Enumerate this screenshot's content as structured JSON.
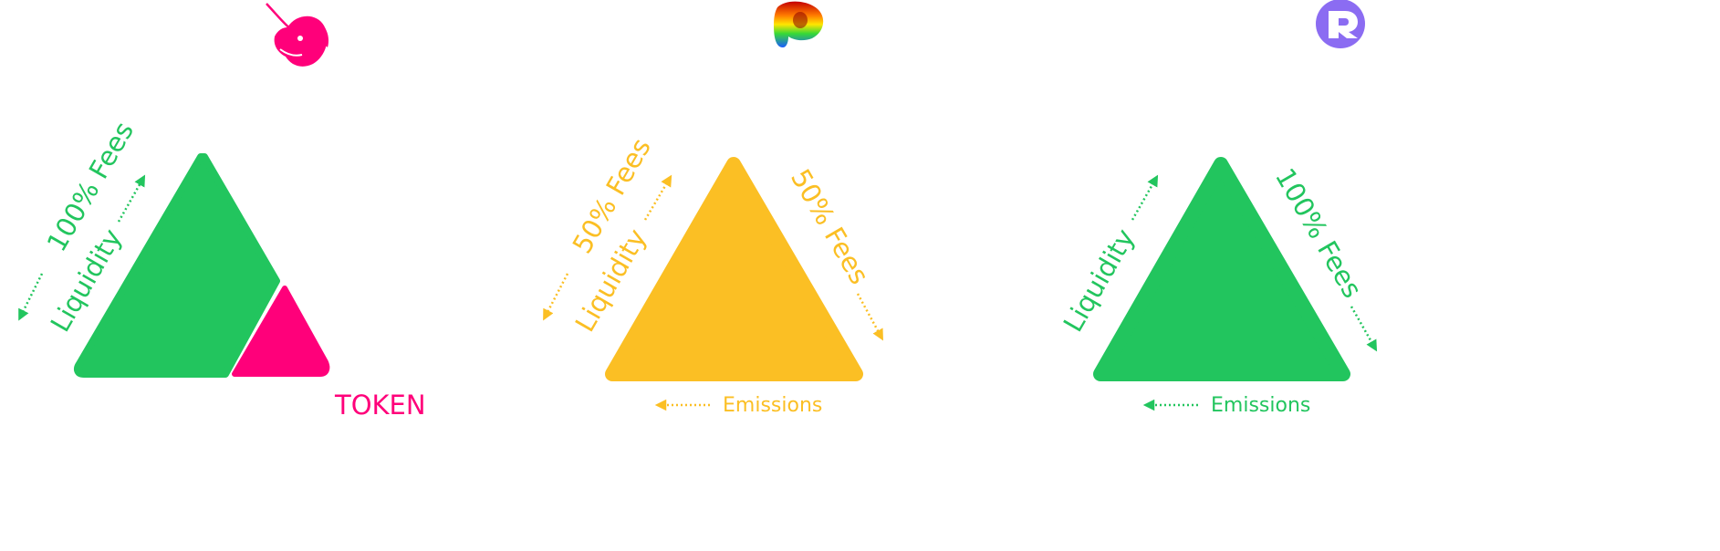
{
  "colors": {
    "green": "#22c55e",
    "pink": "#ff007a",
    "yellow": "#fbbf24",
    "purple": "#8b6cf2"
  },
  "panels": [
    {
      "logo": "uniswap-unicorn-logo",
      "labels": {
        "fees": "100% Fees",
        "liquidity": "Liquidity",
        "token": "TOKEN"
      }
    },
    {
      "logo": "curve-logo",
      "labels": {
        "fees_left": "50% Fees",
        "liquidity": "Liquidity",
        "fees_right": "50% Fees",
        "emissions": "Emissions"
      }
    },
    {
      "logo": "r-logo",
      "labels": {
        "liquidity": "Liquidity",
        "fees": "100% Fees",
        "emissions": "Emissions"
      }
    }
  ]
}
